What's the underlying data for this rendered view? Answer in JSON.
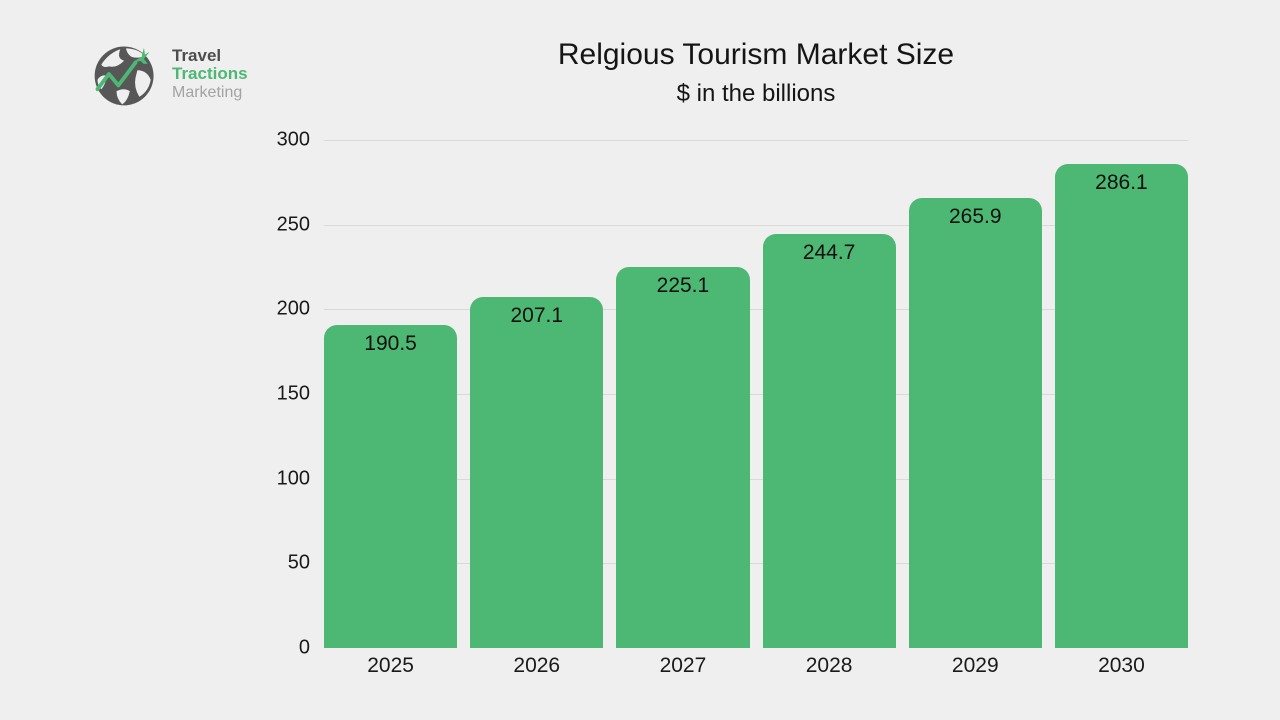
{
  "logo": {
    "line1": "Travel",
    "line2": "Tractions",
    "line3": "Marketing",
    "icon": "globe-plane-chart-icon"
  },
  "chart_data": {
    "type": "bar",
    "title": "Relgious Tourism Market Size",
    "subtitle": "$ in the billions",
    "categories": [
      "2025",
      "2026",
      "2027",
      "2028",
      "2029",
      "2030"
    ],
    "values": [
      190.5,
      207.1,
      225.1,
      244.7,
      265.9,
      286.1
    ],
    "xlabel": "",
    "ylabel": "",
    "ylim": [
      0,
      300
    ],
    "y_ticks": [
      0,
      50,
      100,
      150,
      200,
      250,
      300
    ],
    "grid": true,
    "legend_position": "none",
    "bar_color": "#4cb873",
    "background_color": "#efefef",
    "gridline_color": "#d9d9d9",
    "text_color": "#151515"
  }
}
